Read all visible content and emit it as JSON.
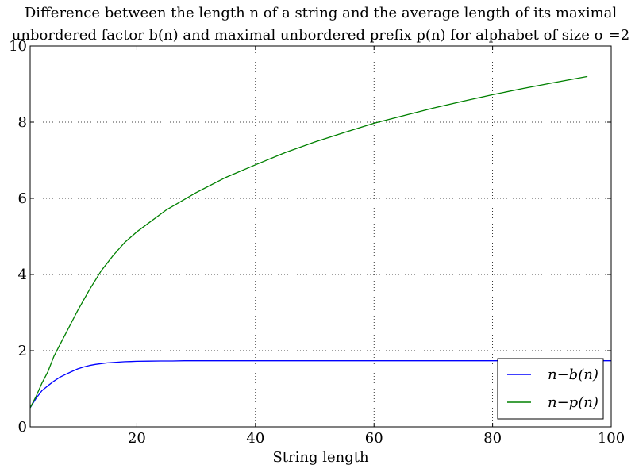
{
  "chart_data": {
    "type": "line",
    "title_lines": [
      "Difference between the length n of a string and the average length of its maximal",
      "unbordered factor b(n) and maximal unbordered prefix p(n) for alphabet of size σ =2"
    ],
    "xlabel": "String length",
    "ylabel": "",
    "xlim": [
      2,
      100
    ],
    "ylim": [
      0,
      10
    ],
    "x_ticks": [
      20,
      40,
      60,
      80,
      100
    ],
    "y_ticks": [
      0,
      2,
      4,
      6,
      8,
      10
    ],
    "grid": true,
    "legend_position": "lower-right",
    "series": [
      {
        "name": "n−b(n)",
        "color": "#0000ff",
        "x": [
          2,
          3,
          4,
          5,
          6,
          7,
          8,
          9,
          10,
          11,
          12,
          13,
          14,
          15,
          16,
          17,
          18,
          19,
          20,
          22,
          24,
          26,
          28,
          30,
          40,
          50,
          60,
          70,
          80,
          90,
          100
        ],
        "y": [
          0.5,
          0.75,
          0.95,
          1.08,
          1.2,
          1.3,
          1.38,
          1.45,
          1.52,
          1.57,
          1.61,
          1.64,
          1.66,
          1.68,
          1.69,
          1.7,
          1.71,
          1.715,
          1.72,
          1.725,
          1.73,
          1.73,
          1.735,
          1.735,
          1.735,
          1.735,
          1.735,
          1.735,
          1.735,
          1.735,
          1.735
        ]
      },
      {
        "name": "n−p(n)",
        "color": "#008000",
        "x": [
          2,
          3,
          4,
          5,
          6,
          7,
          8,
          9,
          10,
          12,
          14,
          16,
          18,
          20,
          25,
          30,
          35,
          40,
          45,
          50,
          55,
          60,
          65,
          70,
          75,
          80,
          85,
          90,
          96
        ],
        "y": [
          0.5,
          0.8,
          1.15,
          1.45,
          1.85,
          2.15,
          2.45,
          2.75,
          3.05,
          3.6,
          4.1,
          4.5,
          4.85,
          5.12,
          5.7,
          6.15,
          6.55,
          6.88,
          7.2,
          7.48,
          7.73,
          7.97,
          8.17,
          8.37,
          8.55,
          8.72,
          8.88,
          9.03,
          9.2
        ]
      }
    ]
  }
}
